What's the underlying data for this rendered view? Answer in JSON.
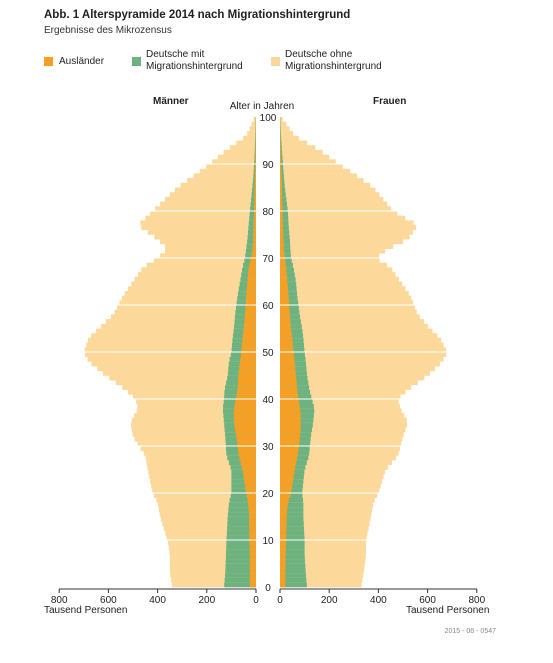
{
  "title": "Abb. 1 Alterspyramide 2014 nach Migrationshintergrund",
  "subtitle": "Ergebnisse des Mikrozensus",
  "footnote": "2015 - 06 - 0547",
  "colors": {
    "auslaender": "#f5a025",
    "deutsche_mit": "#6db27f",
    "deutsche_ohne": "#fcd99a",
    "axis": "#333333"
  },
  "chart_data": {
    "type": "bar",
    "orientation": "horizontal-pyramid",
    "title": "Abb. 1 Alterspyramide 2014 nach Migrationshintergrund",
    "subtitle": "Ergebnisse des Mikrozensus",
    "left_label": "Männer",
    "right_label": "Frauen",
    "center_label": "Alter in Jahren",
    "xlabel_left": "Tausend Personen",
    "xlabel_right": "Tausend Personen",
    "xlim": [
      0,
      800
    ],
    "x_ticks": [
      800,
      600,
      400,
      200,
      0
    ],
    "x_ticks_right": [
      0,
      200,
      400,
      600,
      800
    ],
    "age_ticks": [
      0,
      10,
      20,
      30,
      40,
      50,
      60,
      70,
      80,
      90,
      100
    ],
    "age_range": [
      0,
      100
    ],
    "stacking": "cumulative",
    "legend": [
      {
        "key": "auslaender",
        "label": "Ausländer"
      },
      {
        "key": "deutsche_mit",
        "label": "Deutsche mit\nMigrationshintergrund"
      },
      {
        "key": "deutsche_ohne",
        "label": "Deutsche ohne\nMigrationshintergrund"
      }
    ],
    "anchors_ages": [
      0,
      3,
      7,
      10,
      15,
      18,
      20,
      25,
      28,
      32,
      35,
      38,
      40,
      42,
      45,
      48,
      50,
      53,
      55,
      58,
      62,
      65,
      68,
      70,
      72,
      74,
      77,
      80,
      85,
      88,
      90,
      93,
      96,
      100
    ],
    "male": {
      "auslaender": [
        25,
        25,
        25,
        27,
        28,
        32,
        40,
        55,
        70,
        80,
        90,
        90,
        82,
        75,
        72,
        65,
        60,
        55,
        50,
        45,
        40,
        35,
        30,
        20,
        14,
        12,
        10,
        8,
        6,
        4,
        3,
        2,
        1,
        0
      ],
      "deutsche_mit": [
        130,
        125,
        122,
        120,
        115,
        110,
        100,
        100,
        120,
        125,
        130,
        135,
        130,
        128,
        115,
        110,
        100,
        95,
        90,
        85,
        75,
        65,
        55,
        45,
        40,
        35,
        30,
        25,
        15,
        10,
        8,
        5,
        3,
        1
      ],
      "deutsche_ohne": [
        340,
        350,
        350,
        360,
        390,
        400,
        420,
        440,
        450,
        500,
        510,
        480,
        490,
        530,
        610,
        680,
        700,
        680,
        640,
        580,
        540,
        500,
        460,
        400,
        360,
        400,
        480,
        420,
        320,
        240,
        190,
        120,
        40,
        5
      ]
    },
    "female": {
      "auslaender": [
        22,
        22,
        23,
        25,
        27,
        32,
        45,
        60,
        72,
        82,
        85,
        82,
        75,
        70,
        65,
        60,
        55,
        50,
        45,
        40,
        35,
        30,
        25,
        20,
        16,
        14,
        12,
        10,
        8,
        6,
        4,
        3,
        1,
        0
      ],
      "deutsche_mit": [
        110,
        105,
        100,
        100,
        95,
        95,
        90,
        100,
        118,
        125,
        135,
        140,
        130,
        120,
        110,
        105,
        100,
        95,
        90,
        80,
        70,
        65,
        55,
        45,
        42,
        40,
        35,
        32,
        20,
        15,
        12,
        8,
        4,
        1
      ],
      "deutsche_ohne": [
        330,
        340,
        350,
        350,
        370,
        380,
        400,
        430,
        480,
        500,
        520,
        490,
        480,
        520,
        600,
        660,
        680,
        650,
        610,
        560,
        530,
        490,
        450,
        390,
        440,
        520,
        560,
        460,
        380,
        300,
        240,
        160,
        60,
        5
      ]
    }
  }
}
